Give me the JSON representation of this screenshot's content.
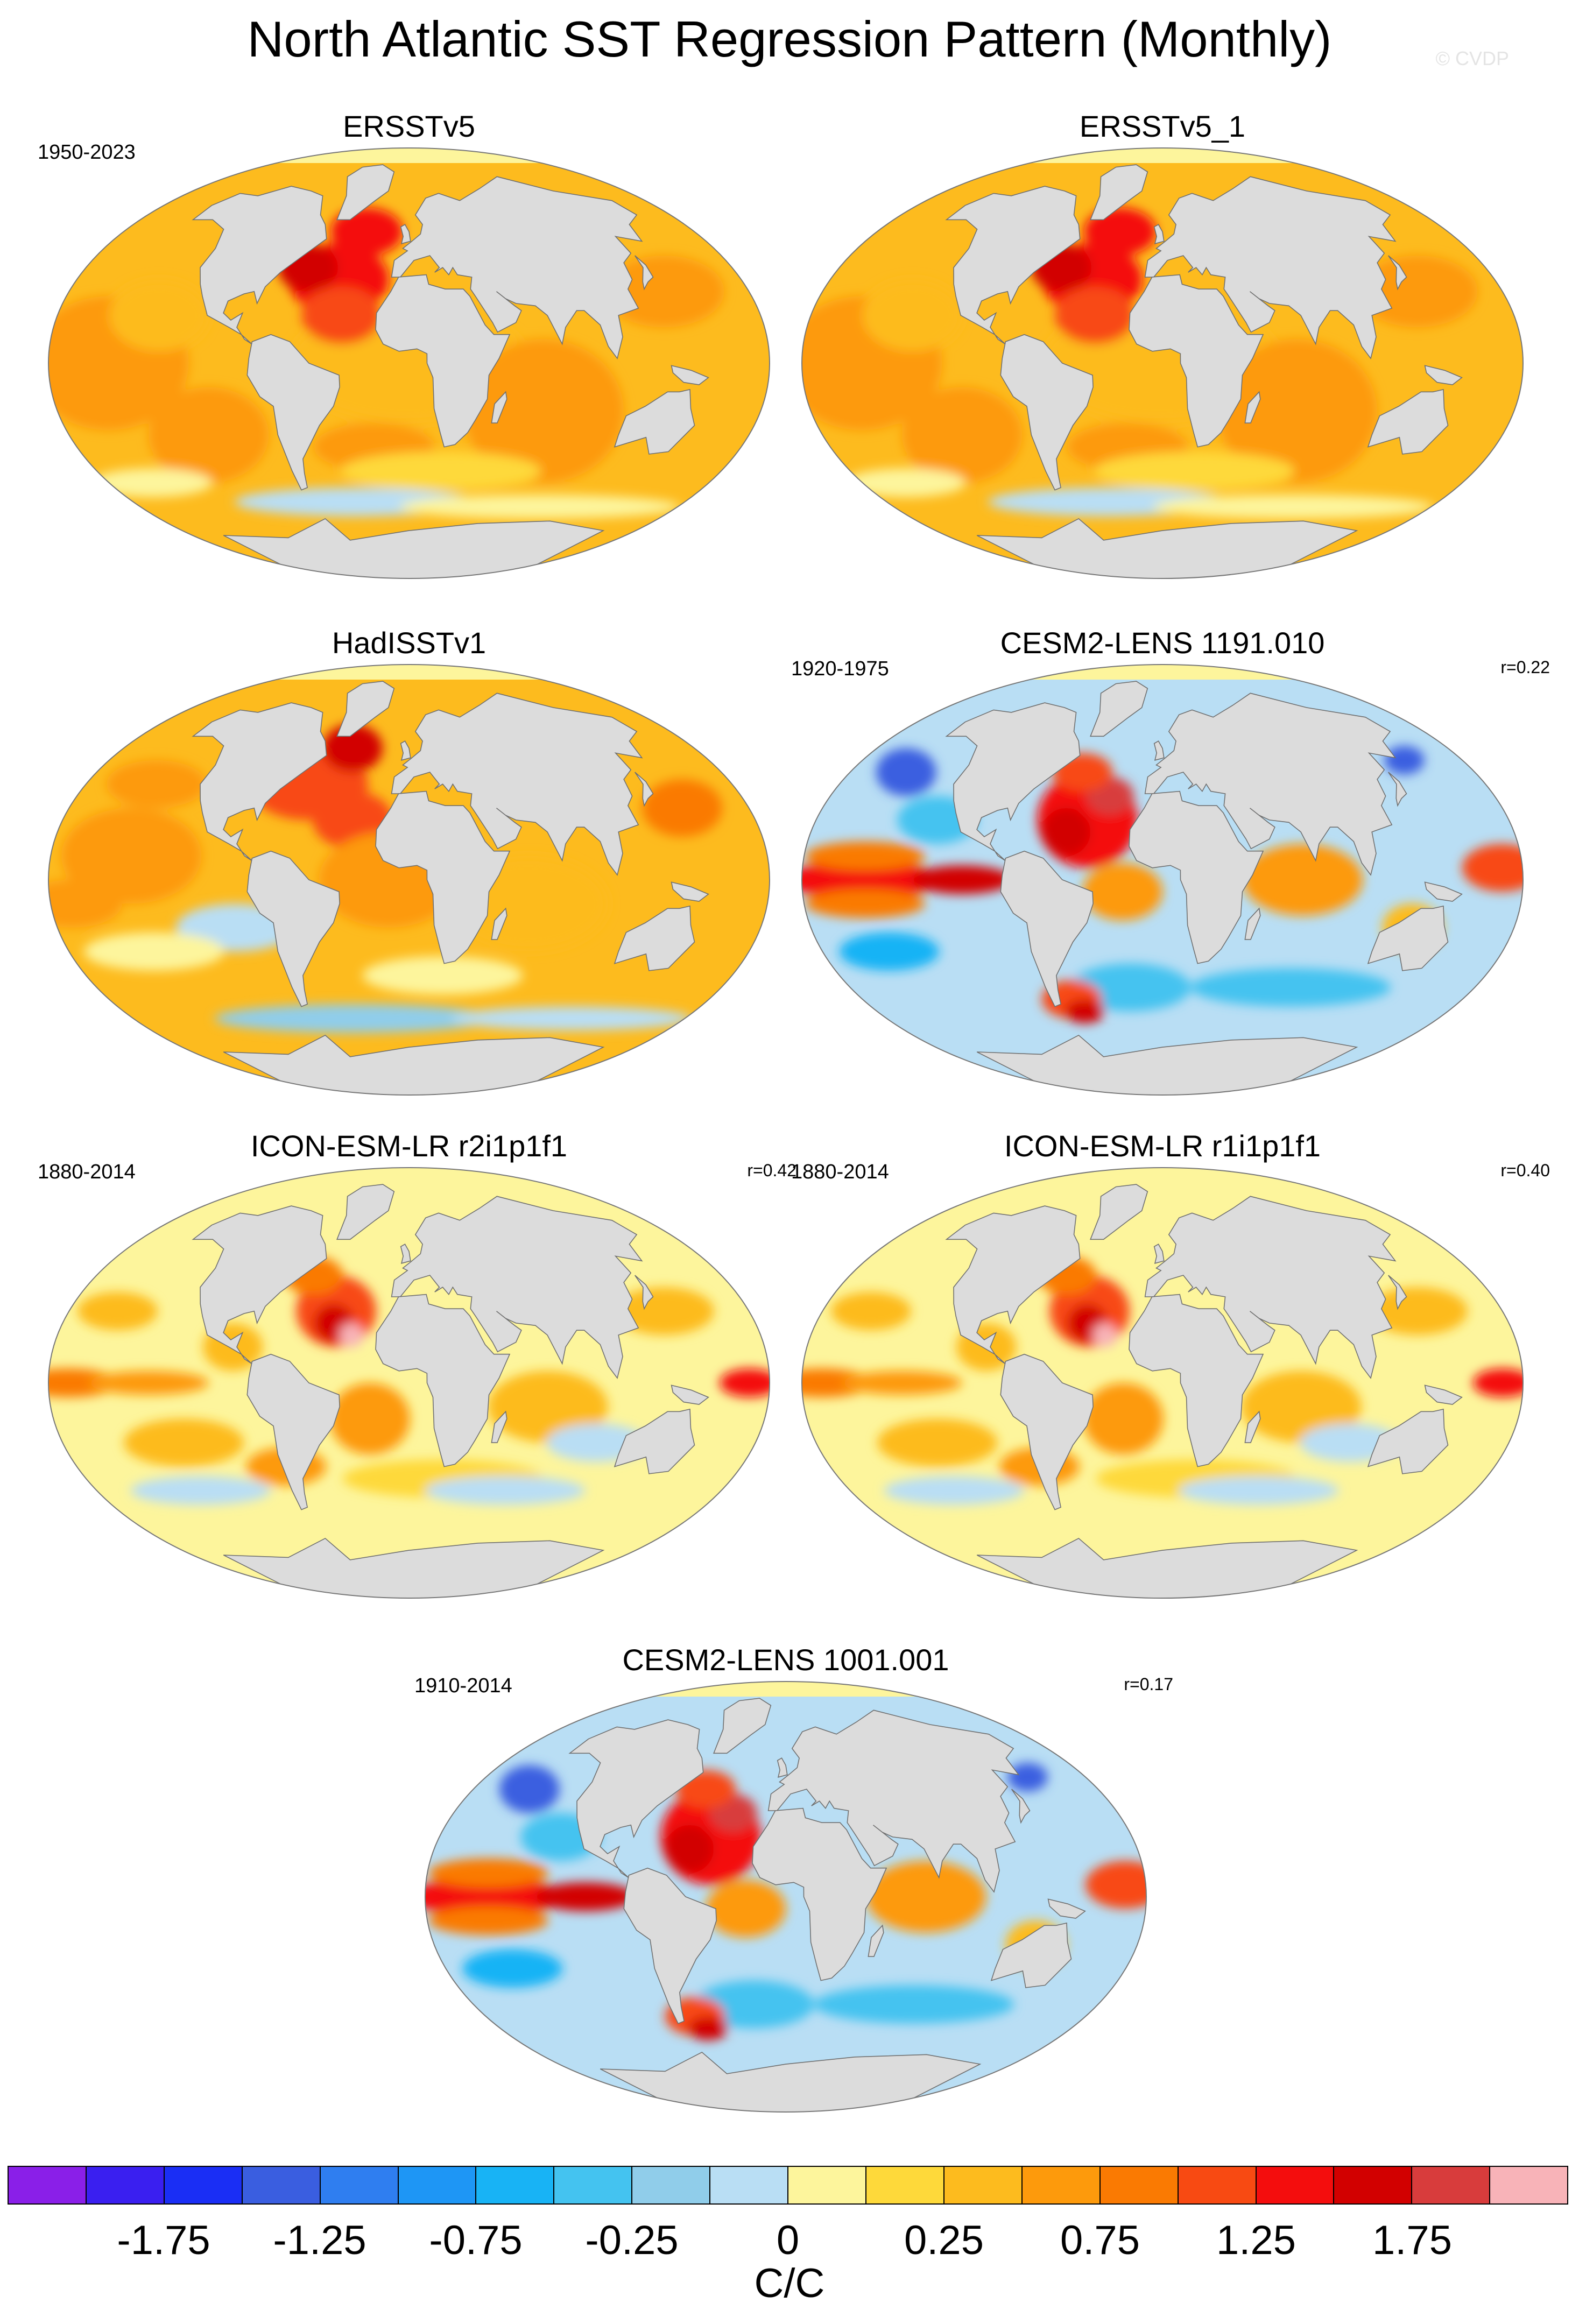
{
  "title": "North Atlantic SST Regression Pattern (Monthly)",
  "watermark": "© CVDP",
  "panels": [
    {
      "title": "ERSSTv5",
      "years": "1950-2023",
      "r": "",
      "pattern": "obs_warm"
    },
    {
      "title": "ERSSTv5_1",
      "years": "",
      "r": "",
      "pattern": "obs_warm"
    },
    {
      "title": "HadISSTv1",
      "years": "",
      "r": "",
      "pattern": "obs_mixed"
    },
    {
      "title": "CESM2-LENS 1191.010",
      "years": "1920-1975",
      "r": "r=0.22",
      "pattern": "model_strong"
    },
    {
      "title": "ICON-ESM-LR r2i1p1f1",
      "years": "1880-2014",
      "r": "r=0.42",
      "pattern": "model_weak"
    },
    {
      "title": "ICON-ESM-LR r1i1p1f1",
      "years": "1880-2014",
      "r": "r=0.40",
      "pattern": "model_weak"
    },
    {
      "title": "CESM2-LENS 1001.001",
      "years": "1910-2014",
      "r": "r=0.17",
      "pattern": "model_strong"
    }
  ],
  "colorbar": {
    "units": "C/C",
    "labels": [
      "-1.75",
      "-1.25",
      "-0.75",
      "-0.25",
      "0",
      "0.25",
      "0.75",
      "1.25",
      "1.75"
    ],
    "colors": [
      "#8a1fe8",
      "#3a1ff0",
      "#1a2ef5",
      "#3a5ee0",
      "#2f7ef0",
      "#1e96f5",
      "#18b3f5",
      "#44c3f0",
      "#90cdea",
      "#b9def4",
      "#fdf59c",
      "#fed93a",
      "#fdbb1e",
      "#fd9a0c",
      "#fa7a02",
      "#f84a12",
      "#f40d0d",
      "#d20000",
      "#d83c3c",
      "#f8b3b8"
    ]
  }
}
